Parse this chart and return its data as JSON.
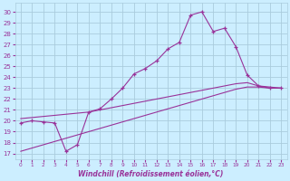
{
  "xlabel": "Windchill (Refroidissement éolien,°C)",
  "bg_color": "#cceeff",
  "grid_color": "#aaccdd",
  "line_color": "#993399",
  "x_ticks": [
    0,
    1,
    2,
    3,
    4,
    5,
    6,
    7,
    8,
    9,
    10,
    11,
    12,
    13,
    14,
    15,
    16,
    17,
    18,
    19,
    20,
    21,
    22,
    23
  ],
  "y_ticks": [
    17,
    18,
    19,
    20,
    21,
    22,
    23,
    24,
    25,
    26,
    27,
    28,
    29,
    30
  ],
  "ylim": [
    16.5,
    30.8
  ],
  "xlim": [
    -0.5,
    23.5
  ],
  "series1_x": [
    0,
    1,
    2,
    3,
    4,
    5,
    6,
    7,
    8,
    9,
    10,
    11,
    12,
    13,
    14,
    15,
    16,
    17,
    18,
    19,
    20,
    21,
    22,
    23
  ],
  "series1_y": [
    19.8,
    20.0,
    19.9,
    19.8,
    17.2,
    17.8,
    20.8,
    21.1,
    22.0,
    23.0,
    24.3,
    24.8,
    25.5,
    26.6,
    27.2,
    29.7,
    30.0,
    28.2,
    28.5,
    26.8,
    24.2,
    23.2,
    23.0,
    23.0
  ],
  "series2_x": [
    0,
    1,
    2,
    3,
    4,
    5,
    6,
    7,
    8,
    9,
    10,
    11,
    12,
    13,
    14,
    15,
    16,
    17,
    18,
    19,
    20,
    21,
    22,
    23
  ],
  "series2_y": [
    20.2,
    20.3,
    20.4,
    20.5,
    20.6,
    20.7,
    20.8,
    21.0,
    21.2,
    21.4,
    21.6,
    21.8,
    22.0,
    22.2,
    22.4,
    22.6,
    22.8,
    23.0,
    23.2,
    23.4,
    23.5,
    23.2,
    23.1,
    23.0
  ],
  "series3_x": [
    0,
    1,
    2,
    3,
    4,
    5,
    6,
    7,
    8,
    9,
    10,
    11,
    12,
    13,
    14,
    15,
    16,
    17,
    18,
    19,
    20,
    21,
    22,
    23
  ],
  "series3_y": [
    17.2,
    17.5,
    17.8,
    18.1,
    18.4,
    18.7,
    19.0,
    19.3,
    19.6,
    19.9,
    20.2,
    20.5,
    20.8,
    21.1,
    21.4,
    21.7,
    22.0,
    22.3,
    22.6,
    22.9,
    23.1,
    23.1,
    23.0,
    23.0
  ]
}
